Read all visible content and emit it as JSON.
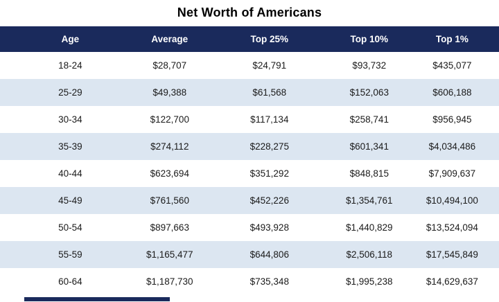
{
  "title": "Net Worth of Americans",
  "chart_data": {
    "type": "table",
    "title": "Net Worth of Americans",
    "columns": [
      "Age",
      "Average",
      "Top 25%",
      "Top 10%",
      "Top 1%"
    ],
    "rows": [
      [
        "18-24",
        "$28,707",
        "$24,791",
        "$93,732",
        "$435,077"
      ],
      [
        "25-29",
        "$49,388",
        "$61,568",
        "$152,063",
        "$606,188"
      ],
      [
        "30-34",
        "$122,700",
        "$117,134",
        "$258,741",
        "$956,945"
      ],
      [
        "35-39",
        "$274,112",
        "$228,275",
        "$601,341",
        "$4,034,486"
      ],
      [
        "40-44",
        "$623,694",
        "$351,292",
        "$848,815",
        "$7,909,637"
      ],
      [
        "45-49",
        "$761,560",
        "$452,226",
        "$1,354,761",
        "$10,494,100"
      ],
      [
        "50-54",
        "$897,663",
        "$493,928",
        "$1,440,829",
        "$13,524,094"
      ],
      [
        "55-59",
        "$1,165,477",
        "$644,806",
        "$2,506,118",
        "$17,545,849"
      ],
      [
        "60-64",
        "$1,187,730",
        "$735,348",
        "$1,995,238",
        "$14,629,637"
      ]
    ],
    "striped_row_indices": [
      1,
      3,
      5,
      7
    ],
    "legend": "none",
    "grid": "off"
  },
  "colors": {
    "header_bg": "#1a2a5c",
    "header_text": "#ffffff",
    "stripe_bg": "#dce6f1",
    "row_bg": "#ffffff",
    "body_text": "#1a1a1a",
    "title_text": "#000000"
  }
}
